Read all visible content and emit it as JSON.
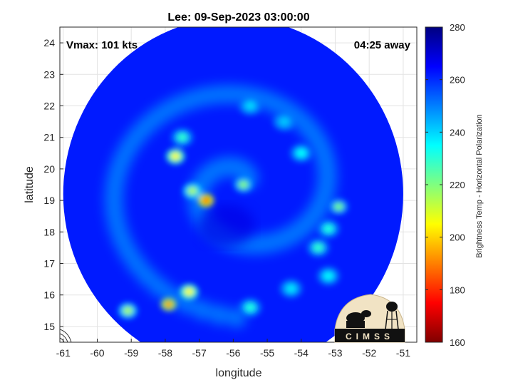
{
  "chart_data": {
    "type": "heatmap",
    "title": "Lee: 09-Sep-2023 03:00:00",
    "xlabel": "longitude",
    "ylabel": "latitude",
    "xlim": [
      -61.1,
      -50.6
    ],
    "ylim": [
      14.5,
      24.5
    ],
    "xticks": [
      -61,
      -60,
      -59,
      -58,
      -57,
      -56,
      -55,
      -54,
      -53,
      -52,
      -51
    ],
    "yticks": [
      15,
      16,
      17,
      18,
      19,
      20,
      21,
      22,
      23,
      24
    ],
    "grid": true,
    "annotations": {
      "left": "Vmax: 101 kts",
      "right": "04:25 away"
    },
    "colorbar": {
      "label": "Brightness Temp - Horizontal Polarization",
      "range": [
        160,
        280
      ],
      "ticks": [
        160,
        180,
        200,
        220,
        240,
        260,
        280
      ],
      "colormap": "jet"
    },
    "swath": {
      "center_lon": -56.0,
      "center_lat": 19.2,
      "radius_lon": 5.0,
      "radius_lat": 5.6,
      "background_value": 262
    },
    "features": [
      {
        "lon": -56.8,
        "lat": 19.0,
        "value": 182
      },
      {
        "lon": -57.2,
        "lat": 19.3,
        "value": 215
      },
      {
        "lon": -57.7,
        "lat": 20.4,
        "value": 205
      },
      {
        "lon": -57.5,
        "lat": 21.0,
        "value": 230
      },
      {
        "lon": -55.7,
        "lat": 19.5,
        "value": 220
      },
      {
        "lon": -52.9,
        "lat": 18.8,
        "value": 222
      },
      {
        "lon": -53.5,
        "lat": 17.5,
        "value": 230
      },
      {
        "lon": -53.2,
        "lat": 18.1,
        "value": 232
      },
      {
        "lon": -54.0,
        "lat": 20.5,
        "value": 235
      },
      {
        "lon": -55.5,
        "lat": 22.0,
        "value": 240
      },
      {
        "lon": -54.5,
        "lat": 21.5,
        "value": 242
      },
      {
        "lon": -57.9,
        "lat": 15.7,
        "value": 190
      },
      {
        "lon": -57.3,
        "lat": 16.1,
        "value": 205
      },
      {
        "lon": -59.1,
        "lat": 15.5,
        "value": 215
      },
      {
        "lon": -55.5,
        "lat": 15.6,
        "value": 232
      },
      {
        "lon": -54.3,
        "lat": 16.2,
        "value": 238
      },
      {
        "lon": -53.2,
        "lat": 16.6,
        "value": 236
      }
    ]
  },
  "logo": {
    "text": "CIMSS"
  }
}
